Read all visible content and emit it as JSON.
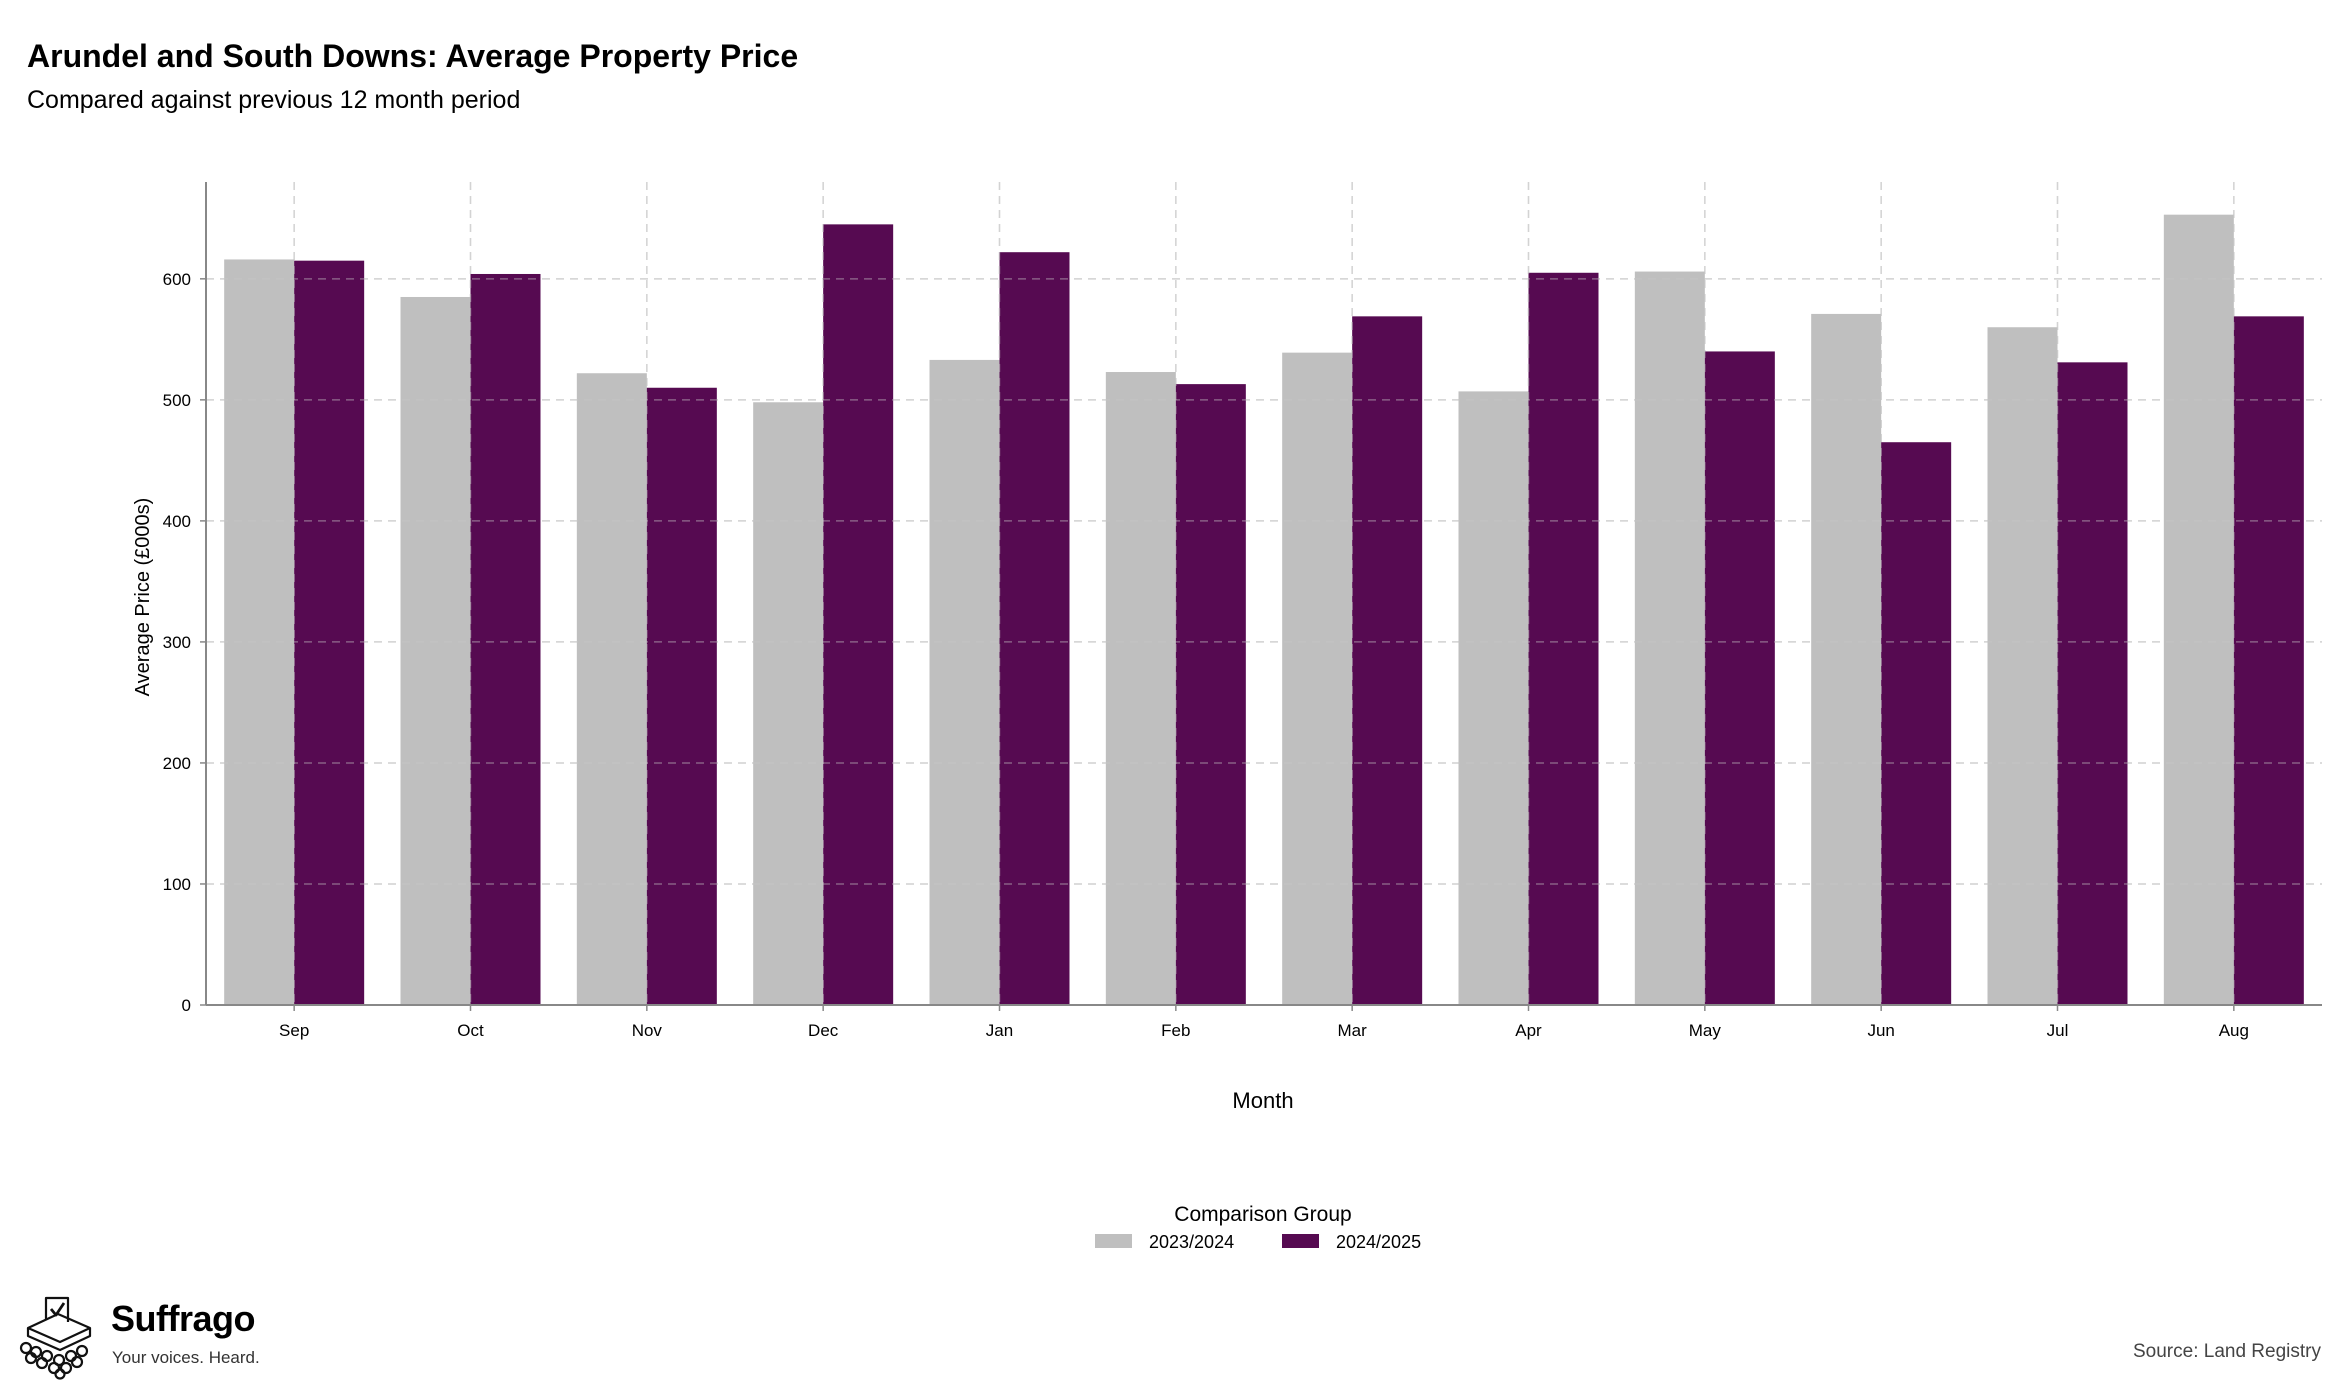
{
  "header": {
    "title": "Arundel and South Downs: Average Property Price",
    "subtitle": "Compared against previous 12 month period"
  },
  "footer": {
    "brand_name": "Suffrago",
    "brand_tagline": "Your voices. Heard.",
    "source": "Source: Land Registry"
  },
  "colors": {
    "series_prev": "#bfbfbf",
    "series_curr": "#560a51",
    "grid": "#dddddd",
    "axis": "#888888"
  },
  "chart_data": {
    "type": "bar",
    "title": "Arundel and South Downs: Average Property Price",
    "subtitle": "Compared against previous 12 month period",
    "xlabel": "Month",
    "ylabel": "Average Price (£000s)",
    "ylim": [
      0,
      680
    ],
    "yticks": [
      0,
      100,
      200,
      300,
      400,
      500,
      600
    ],
    "grid": true,
    "legend_title": "Comparison Group",
    "legend_position": "bottom-center",
    "categories": [
      "Sep",
      "Oct",
      "Nov",
      "Dec",
      "Jan",
      "Feb",
      "Mar",
      "Apr",
      "May",
      "Jun",
      "Jul",
      "Aug"
    ],
    "series": [
      {
        "name": "2023/2024",
        "color": "#bfbfbf",
        "values": [
          616,
          585,
          522,
          498,
          533,
          523,
          539,
          507,
          606,
          571,
          560,
          653
        ]
      },
      {
        "name": "2024/2025",
        "color": "#560a51",
        "values": [
          615,
          604,
          510,
          645,
          622,
          513,
          569,
          605,
          540,
          465,
          531,
          569
        ]
      }
    ]
  }
}
